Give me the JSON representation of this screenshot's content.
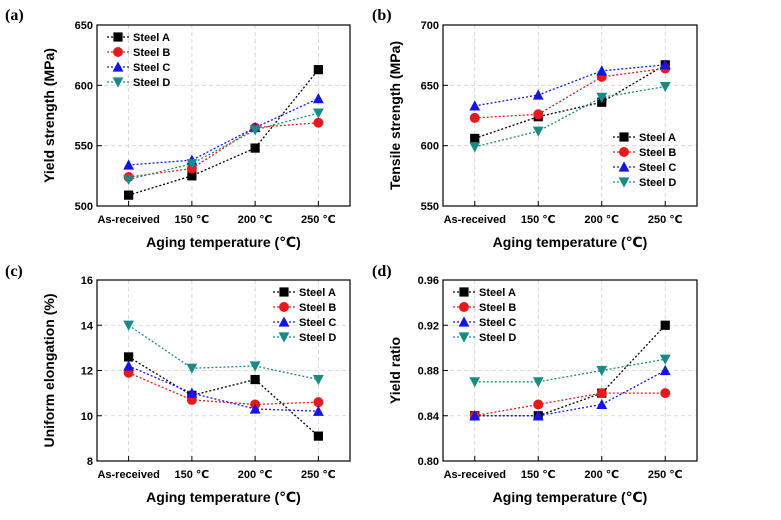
{
  "colors": {
    "Steel A": "#000000",
    "Steel B": "#e8191c",
    "Steel C": "#1414e6",
    "Steel D": "#1a8a86"
  },
  "markers": {
    "Steel A": "square",
    "Steel B": "circle",
    "Steel C": "triangle-up",
    "Steel D": "triangle-down"
  },
  "chart_data": [
    {
      "panel": "(a)",
      "type": "line",
      "xlabel": "Aging temperature (℃)",
      "ylabel": "Yield strength (MPa)",
      "categories": [
        "As-received",
        "150 ℃",
        "200 ℃",
        "250 ℃"
      ],
      "ylim": [
        500,
        650
      ],
      "yticks": [
        500,
        550,
        600,
        650
      ],
      "ytick_labels": [
        "500",
        "550",
        "600",
        "650"
      ],
      "legend_position": "top-left",
      "series": [
        {
          "name": "Steel A",
          "values": [
            509,
            525,
            548,
            613
          ]
        },
        {
          "name": "Steel B",
          "values": [
            524,
            531,
            565,
            569
          ]
        },
        {
          "name": "Steel C",
          "values": [
            534,
            538,
            565,
            589
          ]
        },
        {
          "name": "Steel D",
          "values": [
            522,
            535,
            563,
            577
          ]
        }
      ]
    },
    {
      "panel": "(b)",
      "type": "line",
      "xlabel": "Aging temperature (℃)",
      "ylabel": "Tensile strength (MPa)",
      "categories": [
        "As-received",
        "150 ℃",
        "200 ℃",
        "250 ℃"
      ],
      "ylim": [
        550,
        700
      ],
      "yticks": [
        550,
        600,
        650,
        700
      ],
      "ytick_labels": [
        "550",
        "600",
        "650",
        "700"
      ],
      "legend_position": "bottom-right",
      "series": [
        {
          "name": "Steel A",
          "values": [
            606,
            624,
            636,
            667
          ]
        },
        {
          "name": "Steel B",
          "values": [
            623,
            626,
            657,
            664
          ]
        },
        {
          "name": "Steel C",
          "values": [
            633,
            642,
            662,
            667
          ]
        },
        {
          "name": "Steel D",
          "values": [
            599,
            612,
            640,
            649
          ]
        }
      ]
    },
    {
      "panel": "(c)",
      "type": "line",
      "xlabel": "Aging temperature (℃)",
      "ylabel": "Uniform elongation (%)",
      "categories": [
        "As-received",
        "150 ℃",
        "200 ℃",
        "250 ℃"
      ],
      "ylim": [
        8,
        16
      ],
      "yticks": [
        8,
        10,
        12,
        14,
        16
      ],
      "ytick_labels": [
        "8",
        "10",
        "12",
        "14",
        "16"
      ],
      "legend_position": "top-right",
      "series": [
        {
          "name": "Steel A",
          "values": [
            12.6,
            10.9,
            11.6,
            9.1
          ]
        },
        {
          "name": "Steel B",
          "values": [
            11.9,
            10.7,
            10.5,
            10.6
          ]
        },
        {
          "name": "Steel C",
          "values": [
            12.2,
            11.0,
            10.3,
            10.2
          ]
        },
        {
          "name": "Steel D",
          "values": [
            14.0,
            12.1,
            12.2,
            11.6
          ]
        }
      ]
    },
    {
      "panel": "(d)",
      "type": "line",
      "xlabel": "Aging temperature (℃)",
      "ylabel": "Yield ratio",
      "categories": [
        "As-received",
        "150 ℃",
        "200 ℃",
        "250 ℃"
      ],
      "ylim": [
        0.8,
        0.96
      ],
      "yticks": [
        0.8,
        0.84,
        0.88,
        0.92,
        0.96
      ],
      "ytick_labels": [
        "0.80",
        "0.84",
        "0.88",
        "0.92",
        "0.96"
      ],
      "legend_position": "top-left",
      "series": [
        {
          "name": "Steel A",
          "values": [
            0.84,
            0.84,
            0.86,
            0.92
          ]
        },
        {
          "name": "Steel B",
          "values": [
            0.84,
            0.85,
            0.86,
            0.86
          ]
        },
        {
          "name": "Steel C",
          "values": [
            0.84,
            0.84,
            0.85,
            0.88
          ]
        },
        {
          "name": "Steel D",
          "values": [
            0.87,
            0.87,
            0.88,
            0.89
          ]
        }
      ]
    }
  ]
}
